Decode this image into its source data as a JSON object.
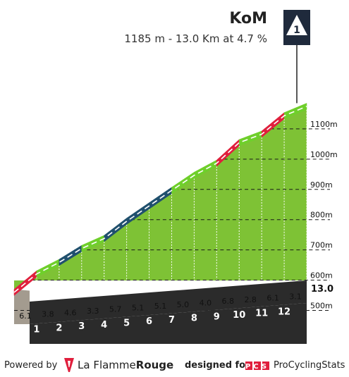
{
  "header": {
    "title": "KoM",
    "subtitle": "1185 m - 13.0 Km at 4.7 %",
    "badge": "1"
  },
  "footer": {
    "powered": "Powered by",
    "brand_a": "La Flamme",
    "brand_b": "Rouge",
    "designed": "designed for",
    "pcs_logo": "PCS",
    "pcs_name": "ProCyclingStats"
  },
  "chart_data": {
    "type": "area",
    "title": "KoM",
    "subtitle": "1185 m - 13.0 Km at 4.7 %",
    "x": [
      0,
      1,
      2,
      3,
      4,
      5,
      6,
      7,
      8,
      9,
      10,
      11,
      12,
      13
    ],
    "elevation": [
      570,
      631,
      669,
      715,
      748,
      805,
      856,
      907,
      957,
      997,
      1065,
      1093,
      1154,
      1185
    ],
    "segments": [
      {
        "km": 1,
        "gradient": 6.1,
        "color": "#e01f3d"
      },
      {
        "km": 2,
        "gradient": 3.8,
        "color": "#6fcf2b"
      },
      {
        "km": 3,
        "gradient": 4.6,
        "color": "#20506e"
      },
      {
        "km": 4,
        "gradient": 3.3,
        "color": "#6fcf2b"
      },
      {
        "km": 5,
        "gradient": 5.7,
        "color": "#20506e"
      },
      {
        "km": 6,
        "gradient": 5.1,
        "color": "#20506e"
      },
      {
        "km": 7,
        "gradient": 5.1,
        "color": "#20506e"
      },
      {
        "km": 8,
        "gradient": 5.0,
        "color": "#6fcf2b"
      },
      {
        "km": 9,
        "gradient": 4.0,
        "color": "#6fcf2b"
      },
      {
        "km": 10,
        "gradient": 6.8,
        "color": "#e01f3d"
      },
      {
        "km": 11,
        "gradient": 2.8,
        "color": "#6fcf2b"
      },
      {
        "km": 12,
        "gradient": 6.1,
        "color": "#e01f3d"
      },
      {
        "km": 13,
        "gradient": 3.1,
        "color": "#6fcf2b"
      }
    ],
    "km_labels": [
      "1",
      "2",
      "3",
      "4",
      "5",
      "6",
      "7",
      "8",
      "9",
      "10",
      "11",
      "12"
    ],
    "gradient_labels": [
      "6.1",
      "3.8",
      "4.6",
      "3.3",
      "5.7",
      "5.1",
      "5.1",
      "5.0",
      "4.0",
      "6.8",
      "2.8",
      "6.1",
      "3.1"
    ],
    "y_ticks": [
      {
        "value": 500,
        "label": "500m"
      },
      {
        "value": 600,
        "label": "600m"
      },
      {
        "value": 700,
        "label": "700m"
      },
      {
        "value": 800,
        "label": "800m"
      },
      {
        "value": 900,
        "label": "900m"
      },
      {
        "value": 1000,
        "label": "1000m"
      },
      {
        "value": 1100,
        "label": "1100m"
      }
    ],
    "distance_label": "13.0",
    "kom_marker": {
      "km": 13,
      "label": "1"
    },
    "xlim": [
      0,
      13
    ],
    "ylim": [
      380,
      1200
    ]
  }
}
